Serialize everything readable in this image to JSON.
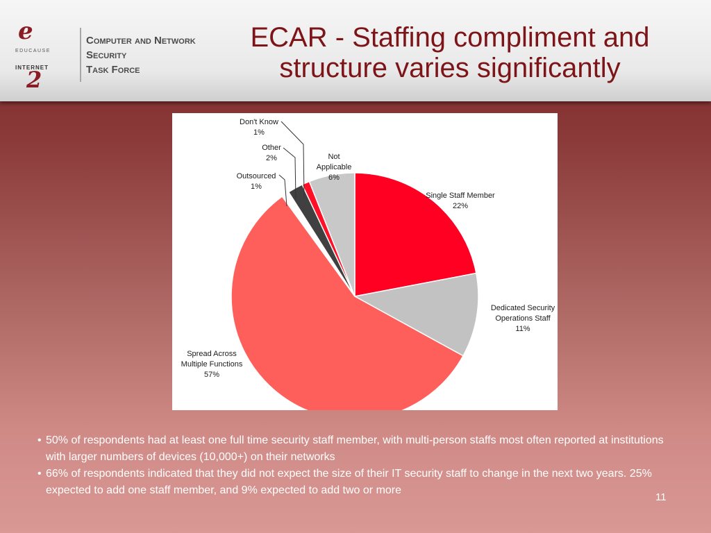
{
  "logo": {
    "line1": "Computer and Network",
    "line2": "Security",
    "line3": "Task Force",
    "educause": "EDUCAUSE",
    "internet2": "INTERNET"
  },
  "title": {
    "line1": "ECAR - Staffing compliment and",
    "line2": "structure varies significantly"
  },
  "chart_data": {
    "type": "pie",
    "title": "",
    "slices": [
      {
        "label": "Single Staff Member",
        "value": 22,
        "value_label": "22%",
        "color": "#ff0022"
      },
      {
        "label": "Dedicated Security Operations Staff",
        "value": 11,
        "value_label": "11%",
        "color": "#c2c2c2"
      },
      {
        "label": "Spread Across Multiple Functions",
        "value": 57,
        "value_label": "57%",
        "color": "#ff5f5b"
      },
      {
        "label": "Outsourced",
        "value": 1,
        "value_label": "1%",
        "color": "#ffffff"
      },
      {
        "label": "Other",
        "value": 2,
        "value_label": "2%",
        "color": "#404040"
      },
      {
        "label": "Don't Know",
        "value": 1,
        "value_label": "1%",
        "color": "#ff1026"
      },
      {
        "label": "Not Applicable",
        "value": 6,
        "value_label": "6%",
        "color": "#c8c8c8"
      }
    ],
    "labels": [
      {
        "lines": [
          "Single Staff Member",
          "22%"
        ]
      },
      {
        "lines": [
          "Dedicated Security",
          "Operations Staff",
          "11%"
        ]
      },
      {
        "lines": [
          "Spread Across",
          "Multiple Functions",
          "57%"
        ]
      },
      {
        "lines": [
          "Outsourced",
          "1%"
        ]
      },
      {
        "lines": [
          "Other",
          "2%"
        ]
      },
      {
        "lines": [
          "Don't Know",
          "1%"
        ]
      },
      {
        "lines": [
          "Not",
          "Applicable",
          "6%"
        ]
      }
    ]
  },
  "bullets": [
    "50% of respondents had at least one full time security staff member, with multi-person staffs most often reported at institutions with larger numbers of devices (10,000+) on their networks",
    "66% of respondents indicated that they did not expect the size of their IT security staff to change in the next two years.  25% expected to add one staff member, and 9% expected to add two or more"
  ],
  "page_number": "11"
}
